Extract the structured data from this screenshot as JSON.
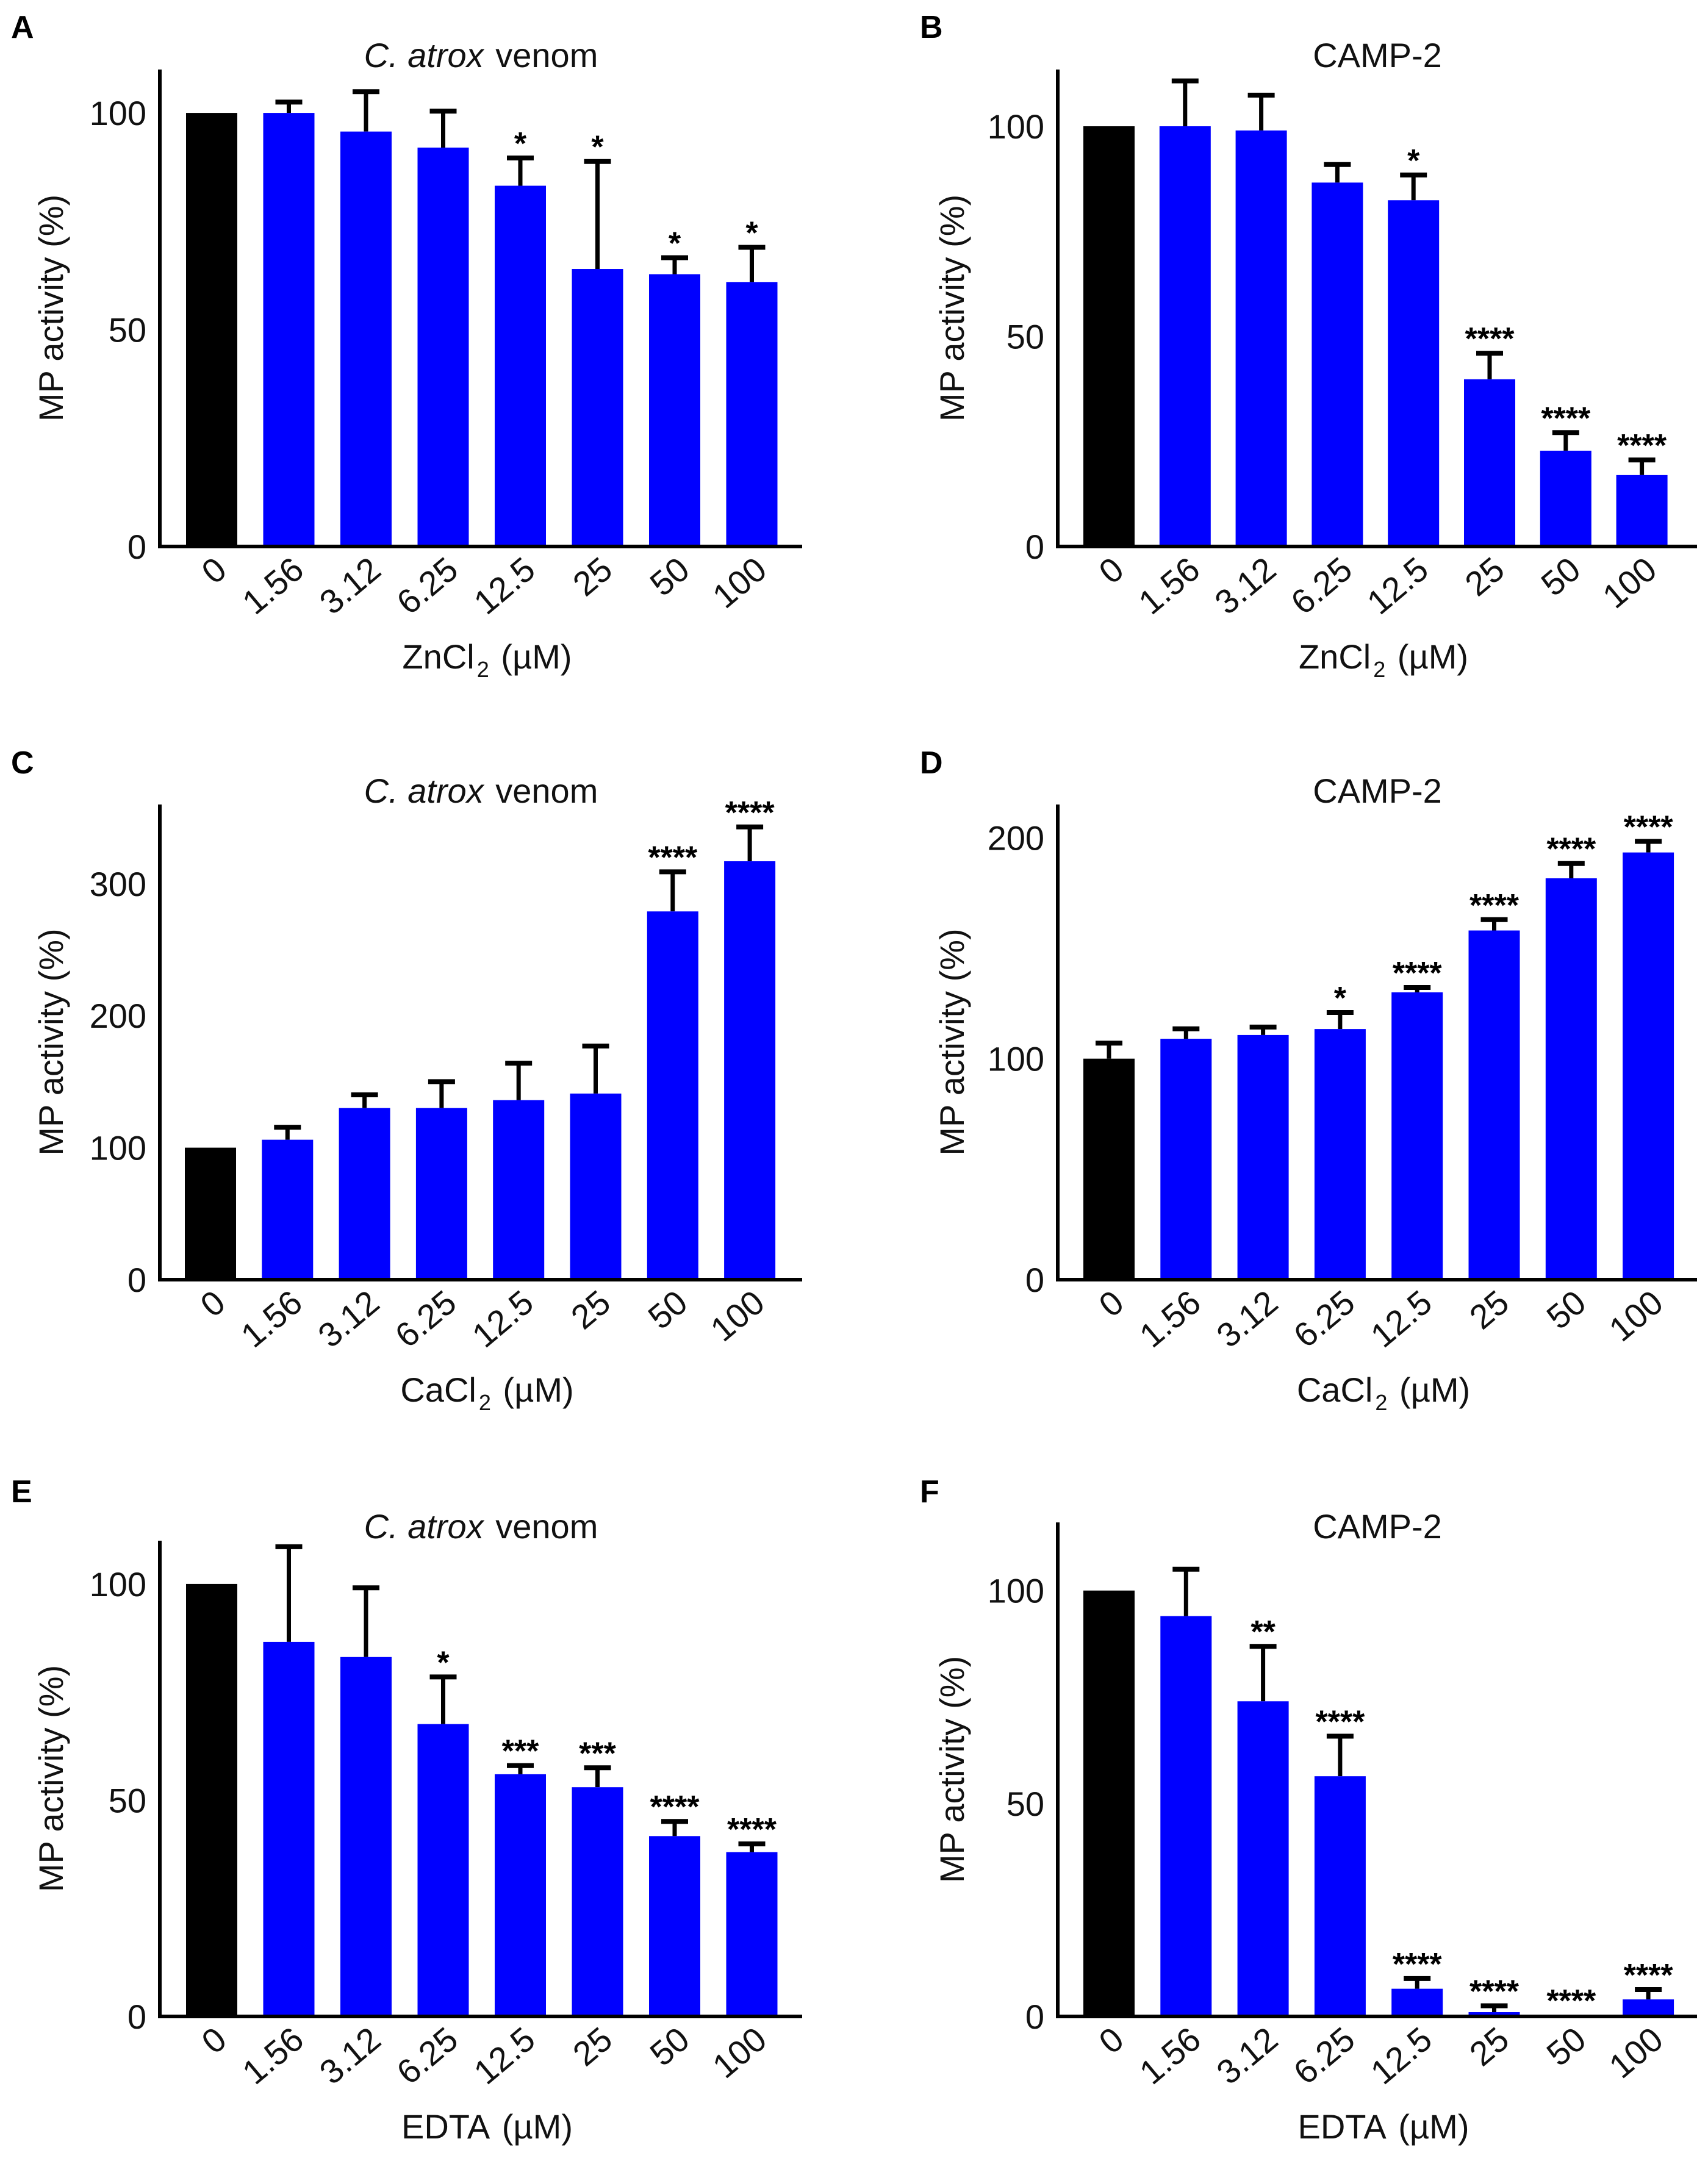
{
  "colors": {
    "control": "#000000",
    "treatment": "#0000ff",
    "axis": "#000000"
  },
  "chart_data": [
    {
      "panel": "A",
      "type": "bar",
      "title_italic": "C. atrox",
      "title_rest": " venom",
      "xlabel_main": "ZnCl",
      "xlabel_sub": "2",
      "xlabel_end": " (µM)",
      "ylabel": "MP activity (%)",
      "categories": [
        "0",
        "1.56",
        "3.12",
        "6.25",
        "12.5",
        "25",
        "50",
        "100"
      ],
      "values": [
        100,
        100,
        95.7,
        92,
        83.2,
        64,
        62.8,
        61
      ],
      "errors": [
        0,
        2.5,
        9.2,
        8.4,
        6.4,
        24.8,
        3.8,
        8
      ],
      "significance": [
        "",
        "",
        "",
        "",
        "*",
        "*",
        "*",
        "*"
      ],
      "yticks": [
        "0",
        "50",
        "100"
      ],
      "ylim": [
        0,
        110
      ]
    },
    {
      "panel": "B",
      "type": "bar",
      "title_italic": "",
      "title_rest": "CAMP-2",
      "xlabel_main": "ZnCl",
      "xlabel_sub": "2",
      "xlabel_end": " (µM)",
      "ylabel": "MP activity (%)",
      "categories": [
        "0",
        "1.56",
        "3.12",
        "6.25",
        "12.5",
        "25",
        "50",
        "100"
      ],
      "values": [
        100,
        100,
        99,
        86.6,
        82.4,
        39.8,
        22.8,
        17
      ],
      "errors": [
        0,
        10.8,
        8.4,
        4.3,
        6,
        6.2,
        4.3,
        3.6
      ],
      "significance": [
        "",
        "",
        "",
        "",
        "*",
        "****",
        "****",
        "****"
      ],
      "yticks": [
        "0",
        "50",
        "100"
      ],
      "ylim": [
        0,
        113.5
      ]
    },
    {
      "panel": "C",
      "type": "bar",
      "title_italic": "C. atrox",
      "title_rest": " venom",
      "xlabel_main": "CaCl",
      "xlabel_sub": "2",
      "xlabel_end": " (µM)",
      "ylabel": "MP activity (%)",
      "categories": [
        "0",
        "1.56",
        "3.12",
        "6.25",
        "12.5",
        "25",
        "50",
        "100"
      ],
      "values": [
        100,
        106,
        130,
        130,
        136,
        141,
        279,
        317
      ],
      "errors": [
        0,
        9.5,
        10,
        20,
        28,
        36,
        30,
        26
      ],
      "significance": [
        "",
        "",
        "",
        "",
        "",
        "",
        "****",
        "****"
      ],
      "yticks": [
        "0",
        "100",
        "200",
        "300"
      ],
      "ylim": [
        0,
        360
      ]
    },
    {
      "panel": "D",
      "type": "bar",
      "title_italic": "",
      "title_rest": "CAMP-2",
      "xlabel_main": "CaCl",
      "xlabel_sub": "2",
      "xlabel_end": " (µM)",
      "ylabel": "MP activity (%)",
      "categories": [
        "0",
        "1.56",
        "3.12",
        "6.25",
        "12.5",
        "25",
        "50",
        "100"
      ],
      "values": [
        100,
        109,
        110.7,
        113.4,
        130,
        158,
        181.6,
        193.3
      ],
      "errors": [
        7,
        4.5,
        3.6,
        7.5,
        2.2,
        4.9,
        6.7,
        5
      ],
      "significance": [
        "",
        "",
        "",
        "*",
        "****",
        "****",
        "****",
        "****"
      ],
      "yticks": [
        "0",
        "100",
        "200"
      ],
      "ylim": [
        0,
        215
      ]
    },
    {
      "panel": "E",
      "type": "bar",
      "title_italic": "C. atrox",
      "title_rest": " venom",
      "xlabel_main": "EDTA",
      "xlabel_sub": "",
      "xlabel_end": " (µM)",
      "ylabel": "MP activity (%)",
      "categories": [
        "0",
        "1.56",
        "3.12",
        "6.25",
        "12.5",
        "25",
        "50",
        "100"
      ],
      "values": [
        100,
        86.6,
        83.1,
        67.6,
        56,
        53,
        41.7,
        38
      ],
      "errors": [
        0,
        22,
        16,
        10.9,
        2,
        4.5,
        3.4,
        1.9
      ],
      "significance": [
        "",
        "",
        "",
        "*",
        "***",
        "***",
        "****",
        "****"
      ],
      "yticks": [
        "0",
        "50",
        "100"
      ],
      "ylim": [
        0,
        110
      ]
    },
    {
      "panel": "F",
      "type": "bar",
      "title_italic": "",
      "title_rest": "CAMP-2",
      "xlabel_main": "EDTA",
      "xlabel_sub": "",
      "xlabel_end": " (µM)",
      "ylabel": "MP activity (%)",
      "categories": [
        "0",
        "1.56",
        "3.12",
        "6.25",
        "12.5",
        "25",
        "50",
        "100"
      ],
      "values": [
        100,
        94,
        74,
        56.4,
        6.5,
        1,
        0.3,
        4
      ],
      "errors": [
        0,
        11,
        12.9,
        9.4,
        2.4,
        1.5,
        0,
        2.3
      ],
      "significance": [
        "",
        "",
        "**",
        "****",
        "****",
        "****",
        "****",
        "****"
      ],
      "yticks": [
        "0",
        "50",
        "100"
      ],
      "ylim": [
        0,
        116
      ]
    }
  ]
}
